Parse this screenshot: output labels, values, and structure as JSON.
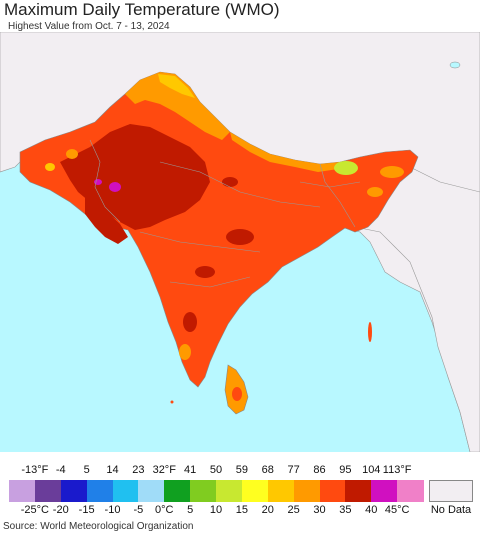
{
  "title": "Maximum Daily Temperature (WMO)",
  "subtitle": "Highest Value from Oct. 7 - 13, 2024",
  "source": "Source: World Meteorological Organization",
  "legend": {
    "fahrenheit_labels": [
      "-13°F",
      "-4",
      "5",
      "14",
      "23",
      "32°F",
      "41",
      "50",
      "59",
      "68",
      "77",
      "86",
      "95",
      "104",
      "113°F"
    ],
    "celsius_labels": [
      "-25°C",
      "-20",
      "-15",
      "-10",
      "-5",
      "0°C",
      "5",
      "10",
      "15",
      "20",
      "25",
      "30",
      "35",
      "40",
      "45°C"
    ],
    "colors": [
      "#c8a0e0",
      "#6a3d9a",
      "#1a1acc",
      "#2080e8",
      "#20c0f0",
      "#a0dcf8",
      "#10a020",
      "#80cc20",
      "#c8e830",
      "#ffff20",
      "#ffc800",
      "#ff9a00",
      "#ff4a10",
      "#c01a00",
      "#d010c0",
      "#f080c8"
    ],
    "no_data_label": "No Data",
    "no_data_color": "#f2eef2"
  },
  "map": {
    "ocean_color": "#b8f8ff",
    "land_outside_color": "#f2eef2",
    "border_color": "#888888"
  }
}
